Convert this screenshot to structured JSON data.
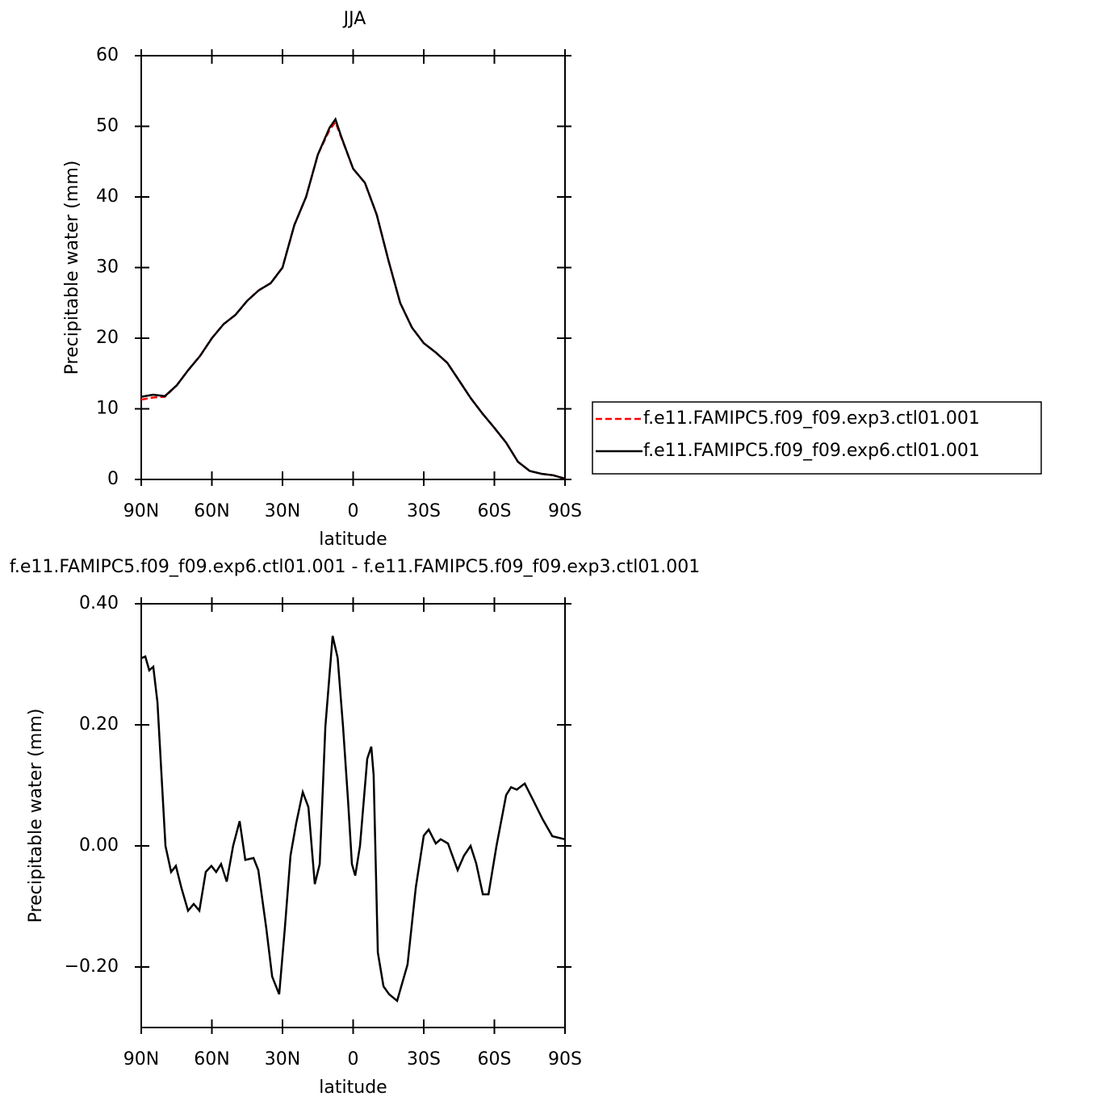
{
  "chart_data": [
    {
      "type": "line",
      "title": "JJA",
      "xlabel": "latitude",
      "ylabel": "Precipitable water (mm)",
      "x": [
        90,
        85,
        80,
        75,
        70,
        65,
        60,
        55,
        50,
        45,
        40,
        35,
        30,
        25,
        20,
        15,
        10,
        7.5,
        5,
        0,
        -5,
        -10,
        -15,
        -20,
        -25,
        -30,
        -35,
        -40,
        -45,
        -50,
        -55,
        -60,
        -65,
        -70,
        -75,
        -80,
        -85,
        -90
      ],
      "xlim": [
        90,
        -90
      ],
      "xticks": [
        {
          "value": 90,
          "label": "90N"
        },
        {
          "value": 60,
          "label": "60N"
        },
        {
          "value": 30,
          "label": "30N"
        },
        0,
        {
          "value": -30,
          "label": "30S"
        },
        {
          "value": -60,
          "label": "60S"
        },
        {
          "value": -90,
          "label": "90S"
        }
      ],
      "ylim": [
        0,
        60
      ],
      "yticks": [
        0,
        10,
        20,
        30,
        40,
        50,
        60
      ],
      "legend": "right",
      "series": [
        {
          "name": "f.e11.FAMIPC5.f09_f09.exp3.ctl01.001",
          "color": "#ff0000",
          "linestyle": "dashed",
          "values": [
            11.3,
            11.6,
            11.7,
            13.3,
            15.5,
            17.5,
            20.0,
            22.0,
            23.3,
            25.3,
            26.8,
            27.8,
            30.0,
            36.0,
            40.0,
            46.0,
            49.5,
            50.6,
            48.4,
            44.0,
            42.0,
            37.5,
            31.0,
            25.0,
            21.5,
            19.3,
            18.0,
            16.5,
            14.0,
            11.5,
            9.3,
            7.3,
            5.2,
            2.5,
            1.2,
            0.8,
            0.6,
            0.1
          ]
        },
        {
          "name": "f.e11.FAMIPC5.f09_f09.exp6.ctl01.001",
          "color": "#000000",
          "linestyle": "solid",
          "values": [
            11.7,
            12.0,
            11.8,
            13.3,
            15.5,
            17.5,
            20.0,
            22.0,
            23.3,
            25.3,
            26.8,
            27.8,
            30.0,
            36.0,
            40.0,
            46.0,
            49.8,
            51.0,
            48.5,
            44.0,
            42.0,
            37.5,
            31.0,
            25.0,
            21.5,
            19.3,
            18.0,
            16.5,
            14.0,
            11.5,
            9.3,
            7.3,
            5.2,
            2.5,
            1.2,
            0.8,
            0.6,
            0.1
          ]
        }
      ]
    },
    {
      "type": "line",
      "title": "f.e11.FAMIPC5.f09_f09.exp6.ctl01.001  -  f.e11.FAMIPC5.f09_f09.exp3.ctl01.001",
      "xlabel": "latitude",
      "ylabel": "Precipitable water (mm)",
      "x": [
        90,
        88.3,
        86.6,
        84.9,
        83.1,
        81.4,
        79.7,
        77.3,
        75.3,
        72.9,
        70.1,
        67.7,
        65.3,
        62.6,
        60.2,
        58.2,
        56.1,
        53.7,
        51.0,
        48.2,
        45.8,
        42.3,
        40.3,
        36.9,
        34.4,
        31.4,
        29.0,
        26.6,
        24.2,
        21.4,
        19.0,
        16.3,
        14.2,
        11.8,
        8.7,
        6.6,
        4.3,
        2.2,
        0.5,
        -0.9,
        -2.9,
        -6.0,
        -7.7,
        -8.7,
        -10.5,
        -12.9,
        -15.3,
        -18.7,
        -23.1,
        -26.6,
        -30.0,
        -32.1,
        -35.1,
        -37.2,
        -40.3,
        -44.4,
        -47.1,
        -49.9,
        -52.3,
        -55.1,
        -57.5,
        -60.9,
        -65.0,
        -67.1,
        -69.5,
        -72.9,
        -76.3,
        -80.5,
        -84.6,
        -90
      ],
      "values": [
        0.31,
        0.313,
        0.29,
        0.296,
        0.237,
        0.117,
        0,
        -0.043,
        -0.033,
        -0.07,
        -0.107,
        -0.096,
        -0.107,
        -0.043,
        -0.033,
        -0.043,
        -0.03,
        -0.059,
        0,
        0.041,
        -0.023,
        -0.02,
        -0.04,
        -0.136,
        -0.216,
        -0.245,
        -0.136,
        -0.016,
        0.037,
        0.089,
        0.064,
        -0.063,
        -0.03,
        0.197,
        0.347,
        0.311,
        0.197,
        0.077,
        -0.03,
        -0.049,
        0,
        0.144,
        0.164,
        0.117,
        -0.176,
        -0.232,
        -0.245,
        -0.256,
        -0.196,
        -0.069,
        0.017,
        0.027,
        0.004,
        0.011,
        0.004,
        -0.04,
        -0.016,
        0,
        -0.029,
        -0.08,
        -0.08,
        0,
        0.084,
        0.097,
        0.093,
        0.103,
        0.077,
        0.044,
        0.016,
        0.011
      ],
      "color": "#000000",
      "xlim": [
        90,
        -90
      ],
      "xticks": [
        {
          "value": 90,
          "label": "90N"
        },
        {
          "value": 60,
          "label": "60N"
        },
        {
          "value": 30,
          "label": "30N"
        },
        0,
        {
          "value": -30,
          "label": "30S"
        },
        {
          "value": -60,
          "label": "60S"
        },
        {
          "value": -90,
          "label": "90S"
        }
      ],
      "ylim": [
        -0.3,
        0.4
      ],
      "yticks": [
        {
          "value": -0.2,
          "label": "−0.20"
        },
        {
          "value": 0,
          "label": "0.00"
        },
        {
          "value": 0.2,
          "label": "0.20"
        },
        {
          "value": 0.4,
          "label": "0.40"
        }
      ]
    }
  ]
}
